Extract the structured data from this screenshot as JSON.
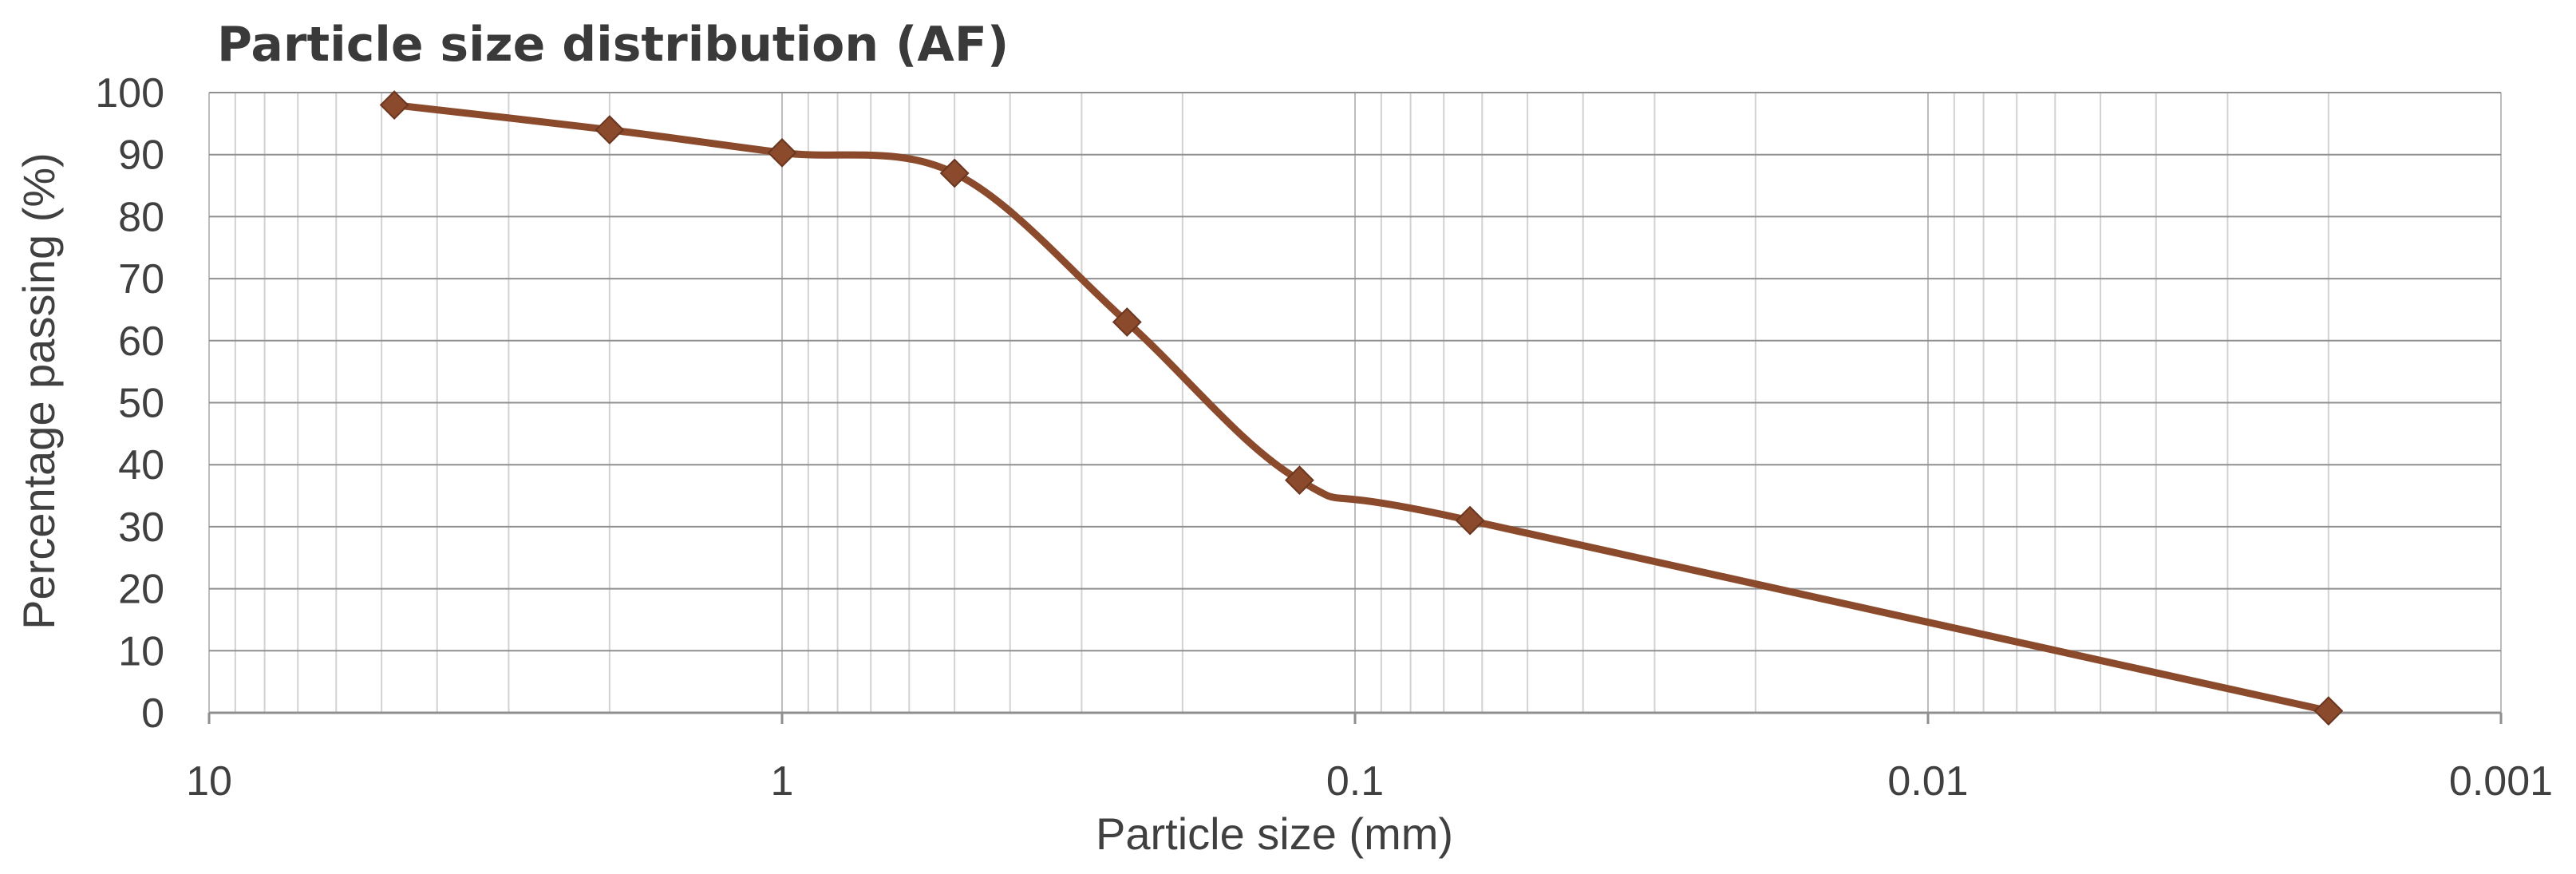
{
  "chart_data": {
    "type": "line",
    "title": "Particle size distribution (AF)",
    "xlabel": "Particle size (mm)",
    "ylabel": "Percentage passing (%)",
    "x_scale": "log",
    "x_reversed": true,
    "xlim": [
      10,
      0.001
    ],
    "ylim": [
      0,
      100
    ],
    "x_ticks": [
      "10",
      "1",
      "0.1",
      "0.01",
      "0.001"
    ],
    "y_ticks": [
      "0",
      "10",
      "20",
      "30",
      "40",
      "50",
      "60",
      "70",
      "80",
      "90",
      "100"
    ],
    "grid": true,
    "smooth": true,
    "series": [
      {
        "x": [
          4.75,
          2,
          1,
          0.5,
          0.25,
          0.125,
          0.063,
          0.002
        ],
        "y": [
          98,
          94,
          90.3,
          87,
          63,
          37.5,
          31,
          0.3
        ],
        "color": "#8B4A2B",
        "marker": "diamond"
      }
    ]
  }
}
